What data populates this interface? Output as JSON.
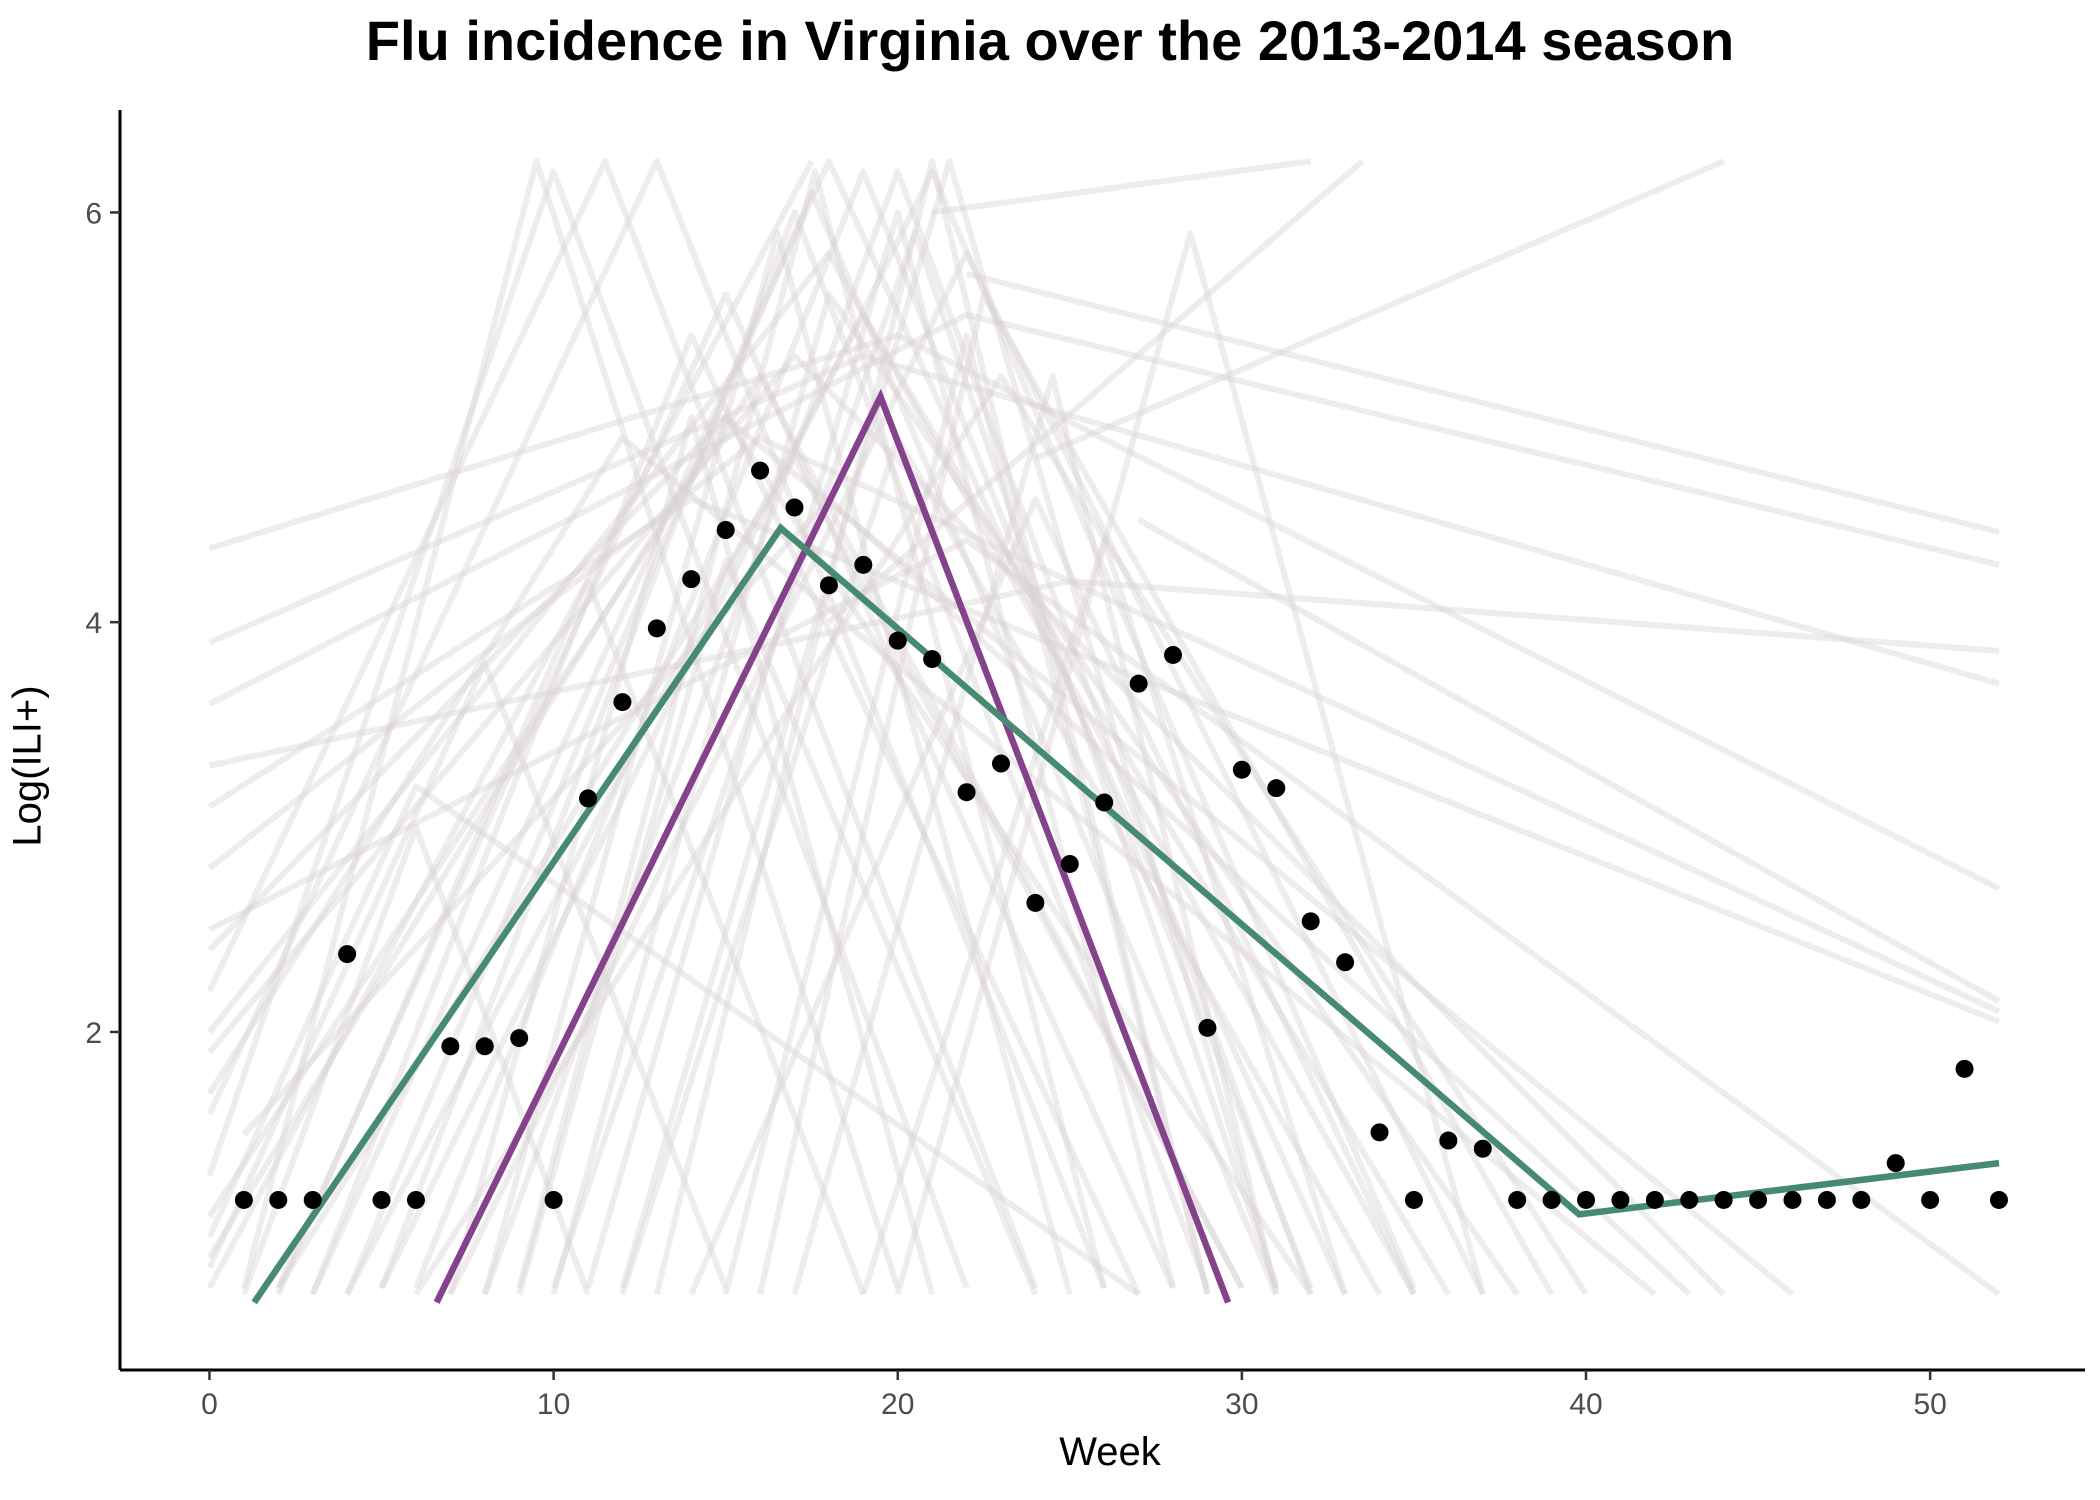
{
  "chart_data": {
    "type": "line",
    "title": "Flu incidence in Virginia over the 2013-2014 season",
    "xlabel": "Week",
    "ylabel": "Log(ILI+)",
    "xlim": [
      -2.6,
      54.5
    ],
    "ylim": [
      0.35,
      6.5
    ],
    "x_ticks": [
      0,
      10,
      20,
      30,
      40,
      50
    ],
    "y_ticks": [
      2,
      4,
      6
    ],
    "grid": false,
    "legend": "none",
    "colors": {
      "observed": "#000000",
      "fit_green": "#468A72",
      "fit_purple": "#84418C",
      "background": "#D9D1D3"
    },
    "observed": {
      "x": [
        1,
        2,
        3,
        4,
        5,
        6,
        7,
        8,
        9,
        10,
        11,
        12,
        13,
        14,
        15,
        16,
        17,
        18,
        19,
        20,
        21,
        22,
        23,
        24,
        25,
        26,
        27,
        28,
        29,
        30,
        31,
        32,
        33,
        34,
        35,
        36,
        37,
        38,
        39,
        40,
        41,
        42,
        43,
        44,
        45,
        46,
        47,
        48,
        49,
        50,
        51,
        52
      ],
      "y": [
        1.18,
        1.18,
        1.18,
        2.38,
        1.18,
        1.18,
        1.93,
        1.93,
        1.97,
        1.18,
        3.14,
        3.61,
        3.97,
        4.21,
        4.45,
        4.74,
        4.56,
        4.18,
        4.28,
        3.91,
        3.82,
        3.17,
        3.31,
        2.63,
        2.82,
        3.12,
        3.7,
        3.84,
        2.02,
        3.28,
        3.19,
        2.54,
        2.34,
        1.51,
        1.18,
        1.47,
        1.43,
        1.18,
        1.18,
        1.18,
        1.18,
        1.18,
        1.18,
        1.18,
        1.18,
        1.18,
        1.18,
        1.18,
        1.36,
        1.18,
        1.82,
        1.18
      ]
    },
    "fit_green": {
      "x": [
        1.3,
        16.6,
        39.8,
        52
      ],
      "y": [
        0.68,
        4.46,
        1.11,
        1.36
      ]
    },
    "fit_purple": {
      "x": [
        6.6,
        19.5,
        29.6
      ],
      "y": [
        0.68,
        5.1,
        0.68
      ]
    },
    "background_curves": [
      {
        "x": [
          0,
          17.5
        ],
        "y": [
          0.75,
          6.25
        ]
      },
      {
        "x": [
          4,
          17.5,
          31
        ],
        "y": [
          0.72,
          6.1,
          0.72
        ]
      },
      {
        "x": [
          6,
          19,
          32
        ],
        "y": [
          0.75,
          6.2,
          0.75
        ]
      },
      {
        "x": [
          2,
          15,
          28
        ],
        "y": [
          0.75,
          5.6,
          0.75
        ]
      },
      {
        "x": [
          8,
          20,
          32
        ],
        "y": [
          0.72,
          6.2,
          0.72
        ]
      },
      {
        "x": [
          10,
          20.5,
          31
        ],
        "y": [
          0.75,
          5.9,
          0.75
        ]
      },
      {
        "x": [
          0,
          16,
          30
        ],
        "y": [
          1.1,
          5.2,
          0.75
        ]
      },
      {
        "x": [
          3,
          18,
          33
        ],
        "y": [
          0.72,
          6.25,
          0.72
        ]
      },
      {
        "x": [
          5,
          21,
          35
        ],
        "y": [
          0.75,
          6.2,
          0.75
        ]
      },
      {
        "x": [
          0,
          13,
          26
        ],
        "y": [
          1.6,
          6.25,
          0.75
        ]
      },
      {
        "x": [
          7,
          22,
          37
        ],
        "y": [
          0.72,
          5.8,
          0.72
        ]
      },
      {
        "x": [
          1,
          9.5,
          20
        ],
        "y": [
          0.75,
          6.25,
          0.75
        ]
      },
      {
        "x": [
          0,
          11.5,
          24
        ],
        "y": [
          2.2,
          6.25,
          0.75
        ]
      },
      {
        "x": [
          12,
          21.5,
          31
        ],
        "y": [
          0.75,
          6.25,
          0.75
        ]
      },
      {
        "x": [
          2,
          17,
          30
        ],
        "y": [
          0.75,
          4.8,
          0.75
        ]
      },
      {
        "x": [
          9,
          17.6,
          26
        ],
        "y": [
          0.75,
          6.2,
          0.75
        ]
      },
      {
        "x": [
          0,
          15,
          32
        ],
        "y": [
          0.9,
          5.0,
          0.72
        ]
      },
      {
        "x": [
          4,
          19,
          36
        ],
        "y": [
          0.72,
          5.5,
          0.72
        ]
      },
      {
        "x": [
          6,
          23,
          40
        ],
        "y": [
          0.72,
          5.2,
          0.72
        ]
      },
      {
        "x": [
          0,
          18,
          35
        ],
        "y": [
          2.0,
          5.8,
          0.72
        ]
      },
      {
        "x": [
          11,
          20,
          28
        ],
        "y": [
          0.75,
          6.0,
          0.75
        ]
      },
      {
        "x": [
          0,
          10,
          22
        ],
        "y": [
          1.3,
          6.2,
          0.75
        ]
      },
      {
        "x": [
          8,
          16.5,
          25
        ],
        "y": [
          0.72,
          5.9,
          0.72
        ]
      },
      {
        "x": [
          3,
          14,
          27
        ],
        "y": [
          0.72,
          5.4,
          0.72
        ]
      },
      {
        "x": [
          5,
          17,
          29
        ],
        "y": [
          0.75,
          6.0,
          0.75
        ]
      },
      {
        "x": [
          13,
          21,
          29
        ],
        "y": [
          0.72,
          6.25,
          0.72
        ]
      },
      {
        "x": [
          0,
          20,
          52
        ],
        "y": [
          4.36,
          5.4,
          2.7
        ]
      },
      {
        "x": [
          22,
          52
        ],
        "y": [
          5.7,
          4.44
        ]
      },
      {
        "x": [
          0,
          22,
          52
        ],
        "y": [
          3.6,
          5.5,
          4.28
        ]
      },
      {
        "x": [
          0,
          19,
          52
        ],
        "y": [
          3.9,
          5.3,
          3.7
        ]
      },
      {
        "x": [
          18,
          33.5
        ],
        "y": [
          4.0,
          6.25
        ]
      },
      {
        "x": [
          24,
          44
        ],
        "y": [
          4.8,
          6.25
        ]
      },
      {
        "x": [
          0,
          25,
          52
        ],
        "y": [
          3.3,
          4.2,
          3.86
        ]
      },
      {
        "x": [
          0,
          14,
          52
        ],
        "y": [
          3.1,
          4.6,
          2.05
        ]
      },
      {
        "x": [
          0,
          16,
          52
        ],
        "y": [
          2.8,
          4.9,
          2.1
        ]
      },
      {
        "x": [
          21,
          32
        ],
        "y": [
          6.0,
          6.25
        ]
      },
      {
        "x": [
          0,
          15,
          46
        ],
        "y": [
          2.4,
          5.0,
          0.72
        ]
      },
      {
        "x": [
          0,
          17,
          44
        ],
        "y": [
          1.9,
          5.3,
          0.72
        ]
      },
      {
        "x": [
          0,
          12,
          42
        ],
        "y": [
          1.7,
          4.9,
          0.72
        ]
      },
      {
        "x": [
          1,
          18,
          43
        ],
        "y": [
          1.5,
          4.6,
          0.72
        ]
      },
      {
        "x": [
          0,
          22,
          52
        ],
        "y": [
          2.5,
          4.4,
          0.72
        ]
      },
      {
        "x": [
          27,
          52
        ],
        "y": [
          4.5,
          2.15
        ]
      },
      {
        "x": [
          20,
          28.5,
          37
        ],
        "y": [
          0.72,
          5.9,
          0.72
        ]
      },
      {
        "x": [
          15,
          22,
          29
        ],
        "y": [
          0.72,
          5.4,
          0.72
        ]
      },
      {
        "x": [
          7,
          14,
          21
        ],
        "y": [
          0.72,
          5.0,
          0.72
        ]
      },
      {
        "x": [
          16,
          22.5,
          39
        ],
        "y": [
          0.72,
          5.6,
          0.72
        ]
      },
      {
        "x": [
          0,
          8,
          15
        ],
        "y": [
          0.85,
          3.8,
          0.75
        ]
      },
      {
        "x": [
          1,
          6,
          11
        ],
        "y": [
          0.72,
          3.0,
          0.72
        ]
      },
      {
        "x": [
          9,
          15,
          24
        ],
        "y": [
          0.72,
          4.3,
          0.72
        ]
      },
      {
        "x": [
          14,
          24,
          35
        ],
        "y": [
          0.72,
          4.6,
          0.72
        ]
      },
      {
        "x": [
          10,
          18,
          38
        ],
        "y": [
          0.72,
          5.6,
          0.72
        ]
      },
      {
        "x": [
          12,
          20,
          34
        ],
        "y": [
          0.72,
          4.9,
          0.72
        ]
      },
      {
        "x": [
          2,
          11,
          19
        ],
        "y": [
          0.72,
          4.2,
          0.72
        ]
      },
      {
        "x": [
          0,
          6,
          27
        ],
        "y": [
          1.0,
          3.2,
          0.72
        ]
      },
      {
        "x": [
          19,
          26,
          33
        ],
        "y": [
          0.72,
          4.4,
          0.72
        ]
      },
      {
        "x": [
          17,
          24.5,
          31
        ],
        "y": [
          0.72,
          5.2,
          0.72
        ]
      }
    ]
  }
}
